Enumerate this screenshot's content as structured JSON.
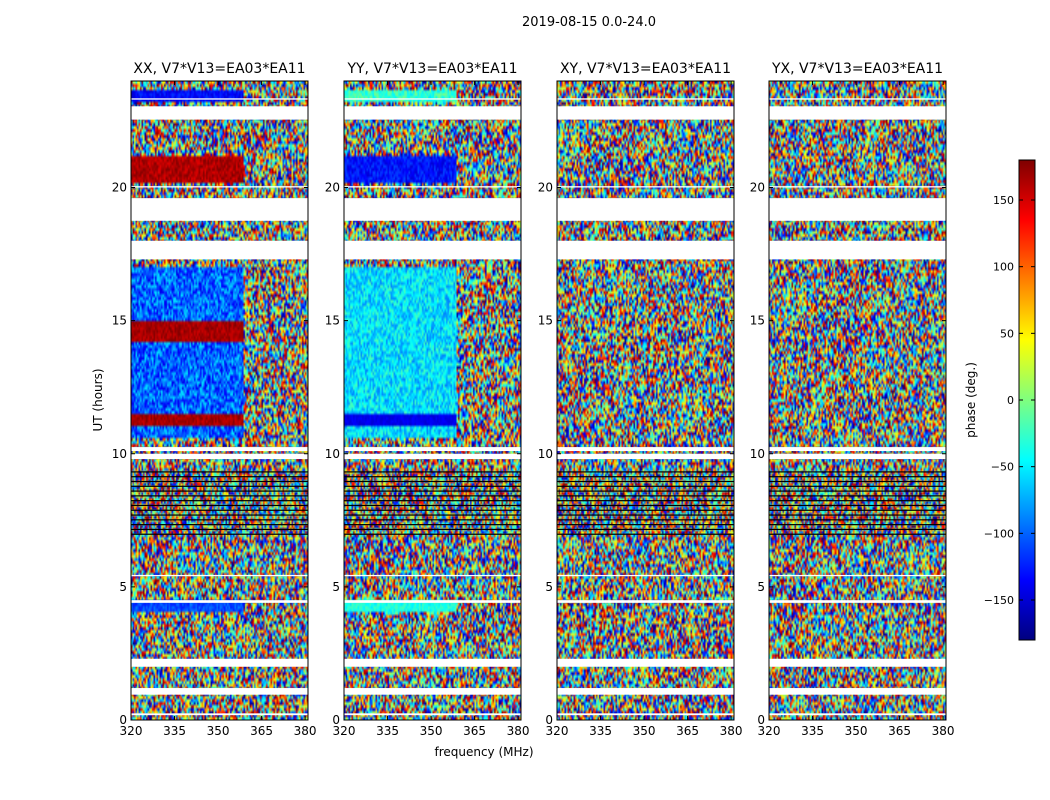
{
  "figure": {
    "suptitle": "2019-08-15 0.0-24.0"
  },
  "chart_data": {
    "type": "heatmap",
    "title": "2019-08-15 0.0-24.0",
    "xlabel": "frequency (MHz)",
    "ylabel": "UT (hours)",
    "xlim": [
      320,
      381
    ],
    "ylim": [
      0,
      24
    ],
    "xticks": [
      320,
      335,
      350,
      365,
      380
    ],
    "xtick_labels": [
      "320",
      "335",
      "350",
      "365",
      "380"
    ],
    "yticks": [
      0,
      5,
      10,
      15,
      20
    ],
    "ytick_labels": [
      "0",
      "5",
      "10",
      "15",
      "20"
    ],
    "colorbar": {
      "label": "phase (deg.)",
      "range": [
        -180,
        180
      ],
      "ticks": [
        -150,
        -100,
        -50,
        0,
        50,
        100,
        150
      ],
      "tick_labels": [
        "−150",
        "−100",
        "−50",
        "0",
        "50",
        "100",
        "150"
      ],
      "colormap": "jet",
      "colors": [
        "#00007f",
        "#0000ff",
        "#007fff",
        "#00ffff",
        "#7fff7f",
        "#ffff00",
        "#ff7f00",
        "#ff0000",
        "#7f0000"
      ]
    },
    "panels": [
      {
        "title": "XX, V7*V13=EA03*EA11",
        "polarization": "XX"
      },
      {
        "title": "YY, V7*V13=EA03*EA11",
        "polarization": "YY"
      },
      {
        "title": "XY, V7*V13=EA03*EA11",
        "polarization": "XY"
      },
      {
        "title": "YX, V7*V13=EA03*EA11",
        "polarization": "YX"
      }
    ],
    "flagged_ut_ranges_hours": [
      [
        0.18,
        0.25
      ],
      [
        0.95,
        1.2
      ],
      [
        2.0,
        2.3
      ],
      [
        4.4,
        4.5
      ],
      [
        5.4,
        5.45
      ],
      [
        9.8,
        10.0
      ],
      [
        10.1,
        10.25
      ],
      [
        17.3,
        18.0
      ],
      [
        18.75,
        19.6
      ],
      [
        20.0,
        20.05
      ],
      [
        22.55,
        23.05
      ],
      [
        23.3,
        23.35
      ]
    ]
  }
}
